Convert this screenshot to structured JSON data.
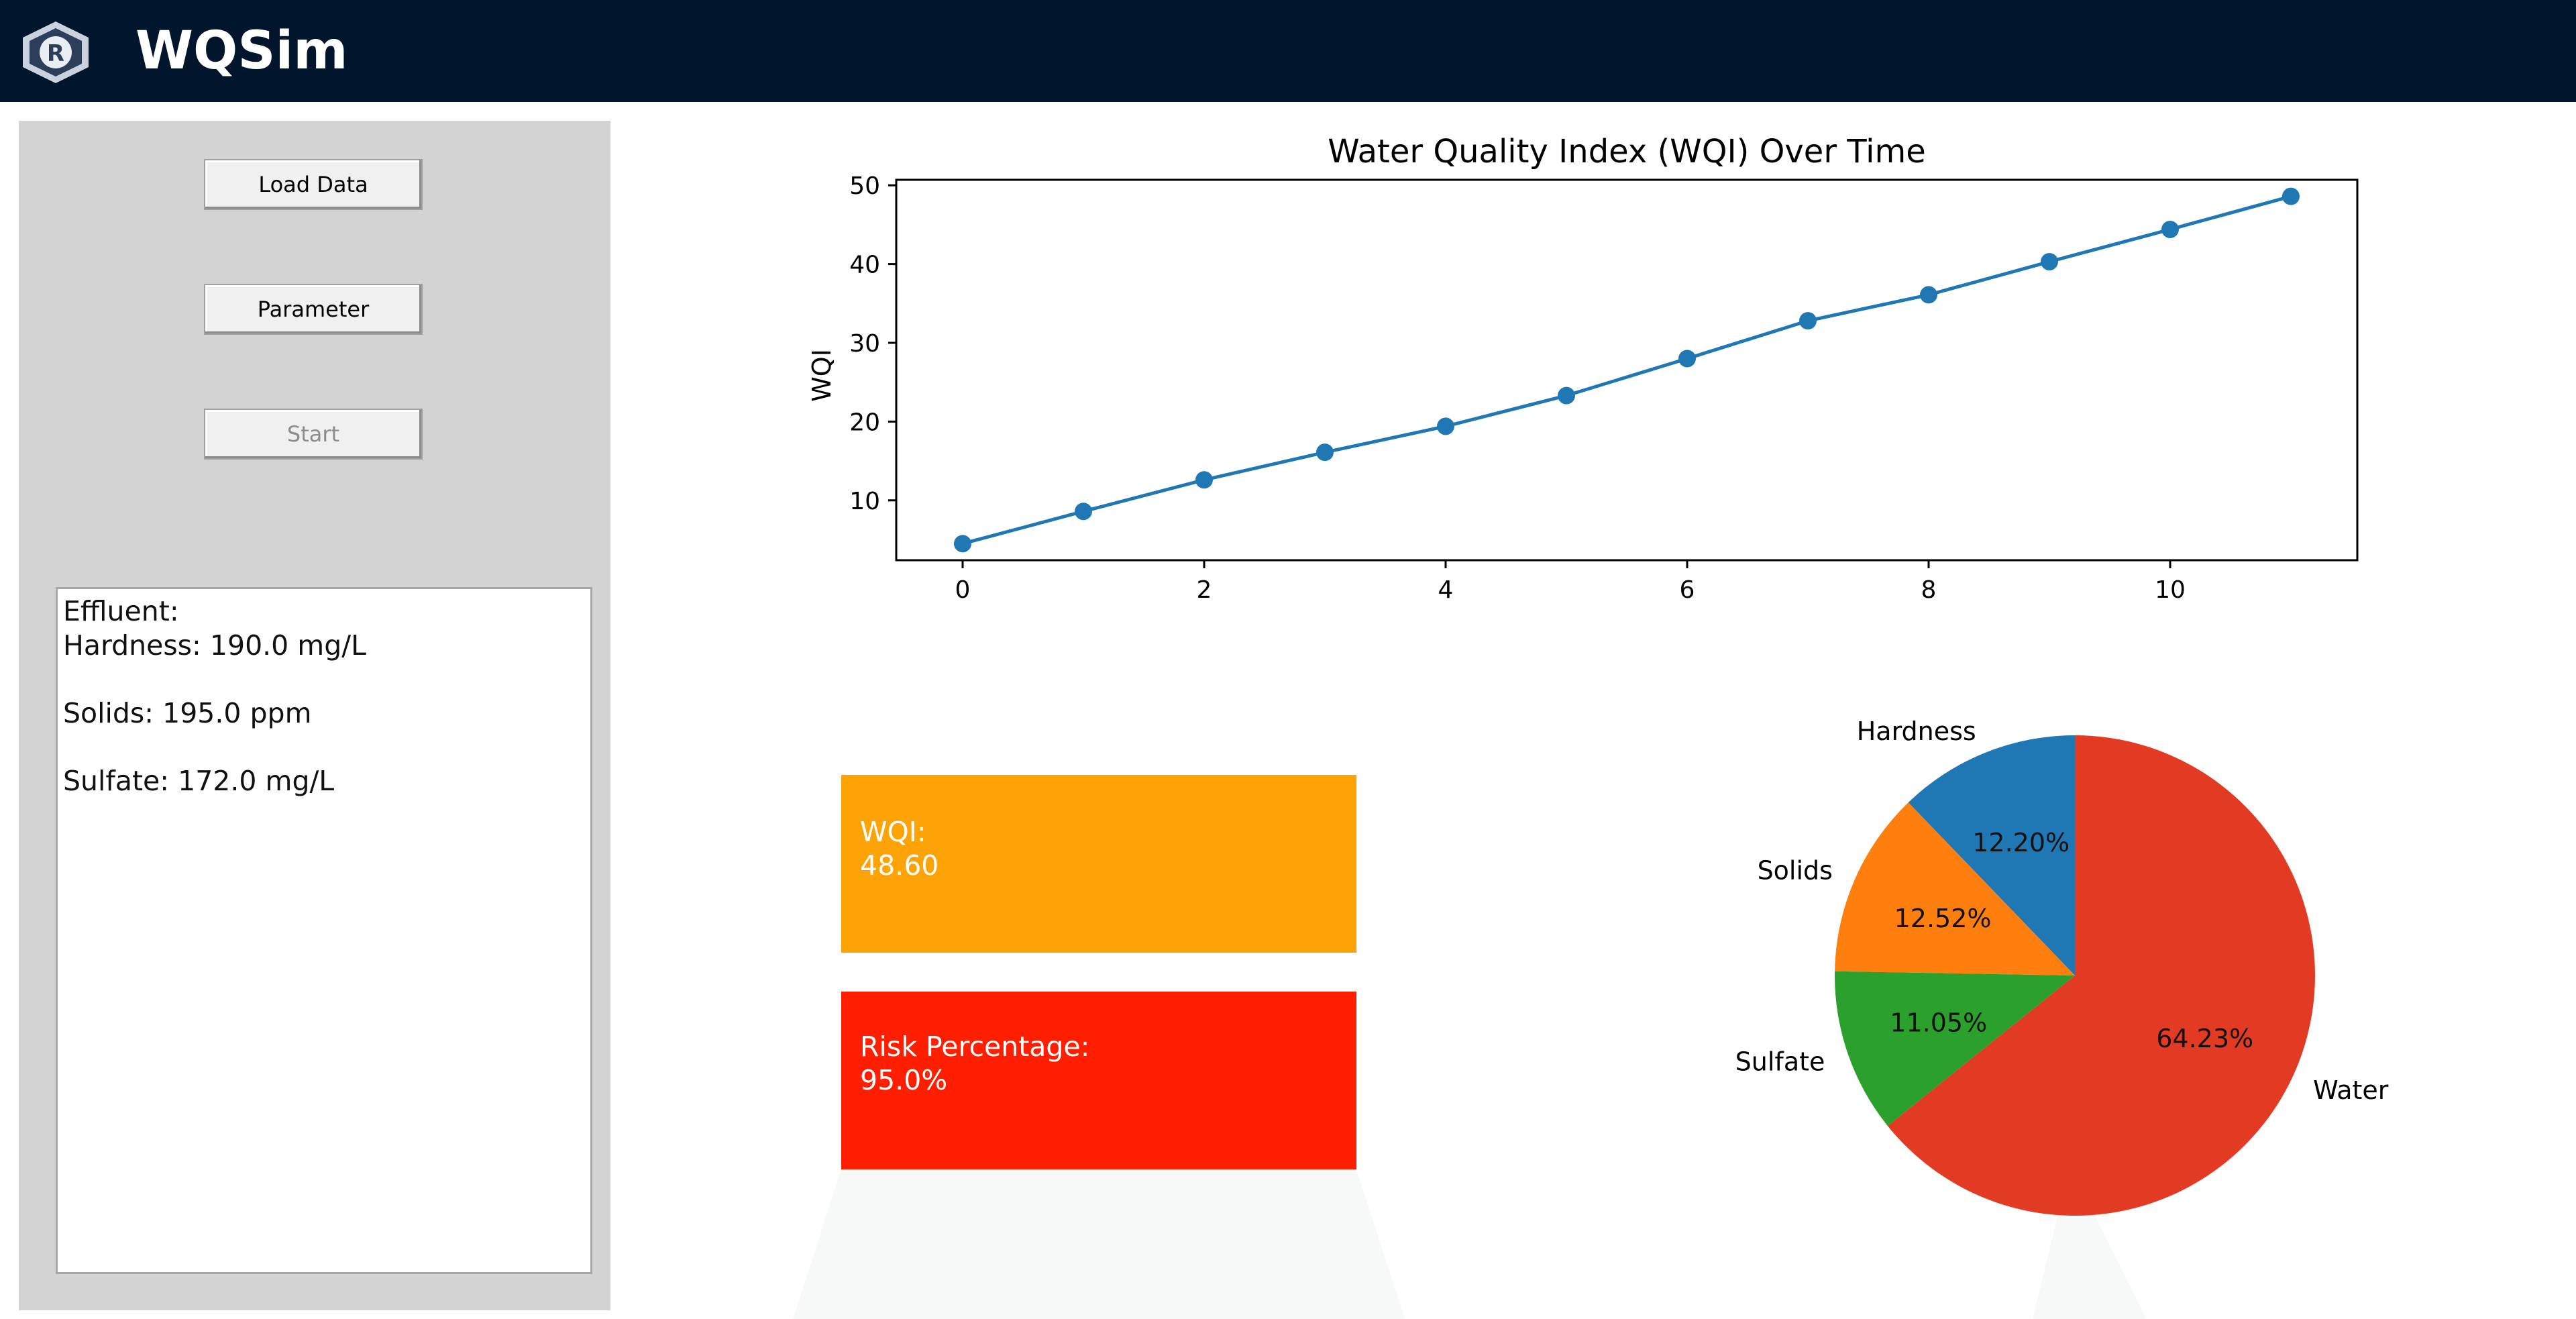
{
  "app": {
    "title": "WQSim",
    "logo_letter": "R"
  },
  "sidebar": {
    "buttons": [
      {
        "label": "Load Data",
        "enabled": true
      },
      {
        "label": "Parameter",
        "enabled": true
      },
      {
        "label": "Start",
        "enabled": false
      }
    ],
    "info_lines": [
      "Effluent:",
      "Hardness: 190.0 mg/L",
      "Solids: 195.0 ppm",
      "Sulfate: 172.0 mg/L"
    ]
  },
  "cards": {
    "wqi": {
      "label": "WQI:",
      "value": "48.60",
      "color": "#fea305"
    },
    "risk": {
      "label": "Risk Percentage:",
      "value": "95.0%",
      "color": "#ff1e00"
    }
  },
  "chart_data": [
    {
      "type": "line",
      "title": "Water Quality Index (WQI) Over Time",
      "xlabel": "",
      "ylabel": "WQI",
      "x": [
        0,
        1,
        2,
        3,
        4,
        5,
        6,
        7,
        8,
        9,
        10,
        11
      ],
      "y": [
        4.5,
        8.6,
        12.6,
        16.1,
        19.4,
        23.3,
        28.0,
        32.8,
        36.1,
        40.3,
        44.4,
        48.6
      ],
      "xlim": [
        -0.55,
        11.55
      ],
      "ylim": [
        2.4,
        50.7
      ],
      "xticks": [
        0,
        2,
        4,
        6,
        8,
        10
      ],
      "yticks": [
        10,
        20,
        30,
        40,
        50
      ],
      "grid": false,
      "color": "#1f77b4"
    },
    {
      "type": "pie",
      "title": "",
      "labels": [
        "Hardness",
        "Solids",
        "Sulfate",
        "Water"
      ],
      "values": [
        12.2,
        12.52,
        11.05,
        64.23
      ],
      "value_labels": [
        "12.20%",
        "12.52%",
        "11.05%",
        "64.23%"
      ],
      "colors": [
        "#1f77b4",
        "#ff7f0e",
        "#2ca02c",
        "#e33a23"
      ],
      "start_angle_deg": 90,
      "direction": "counterclockwise"
    }
  ]
}
